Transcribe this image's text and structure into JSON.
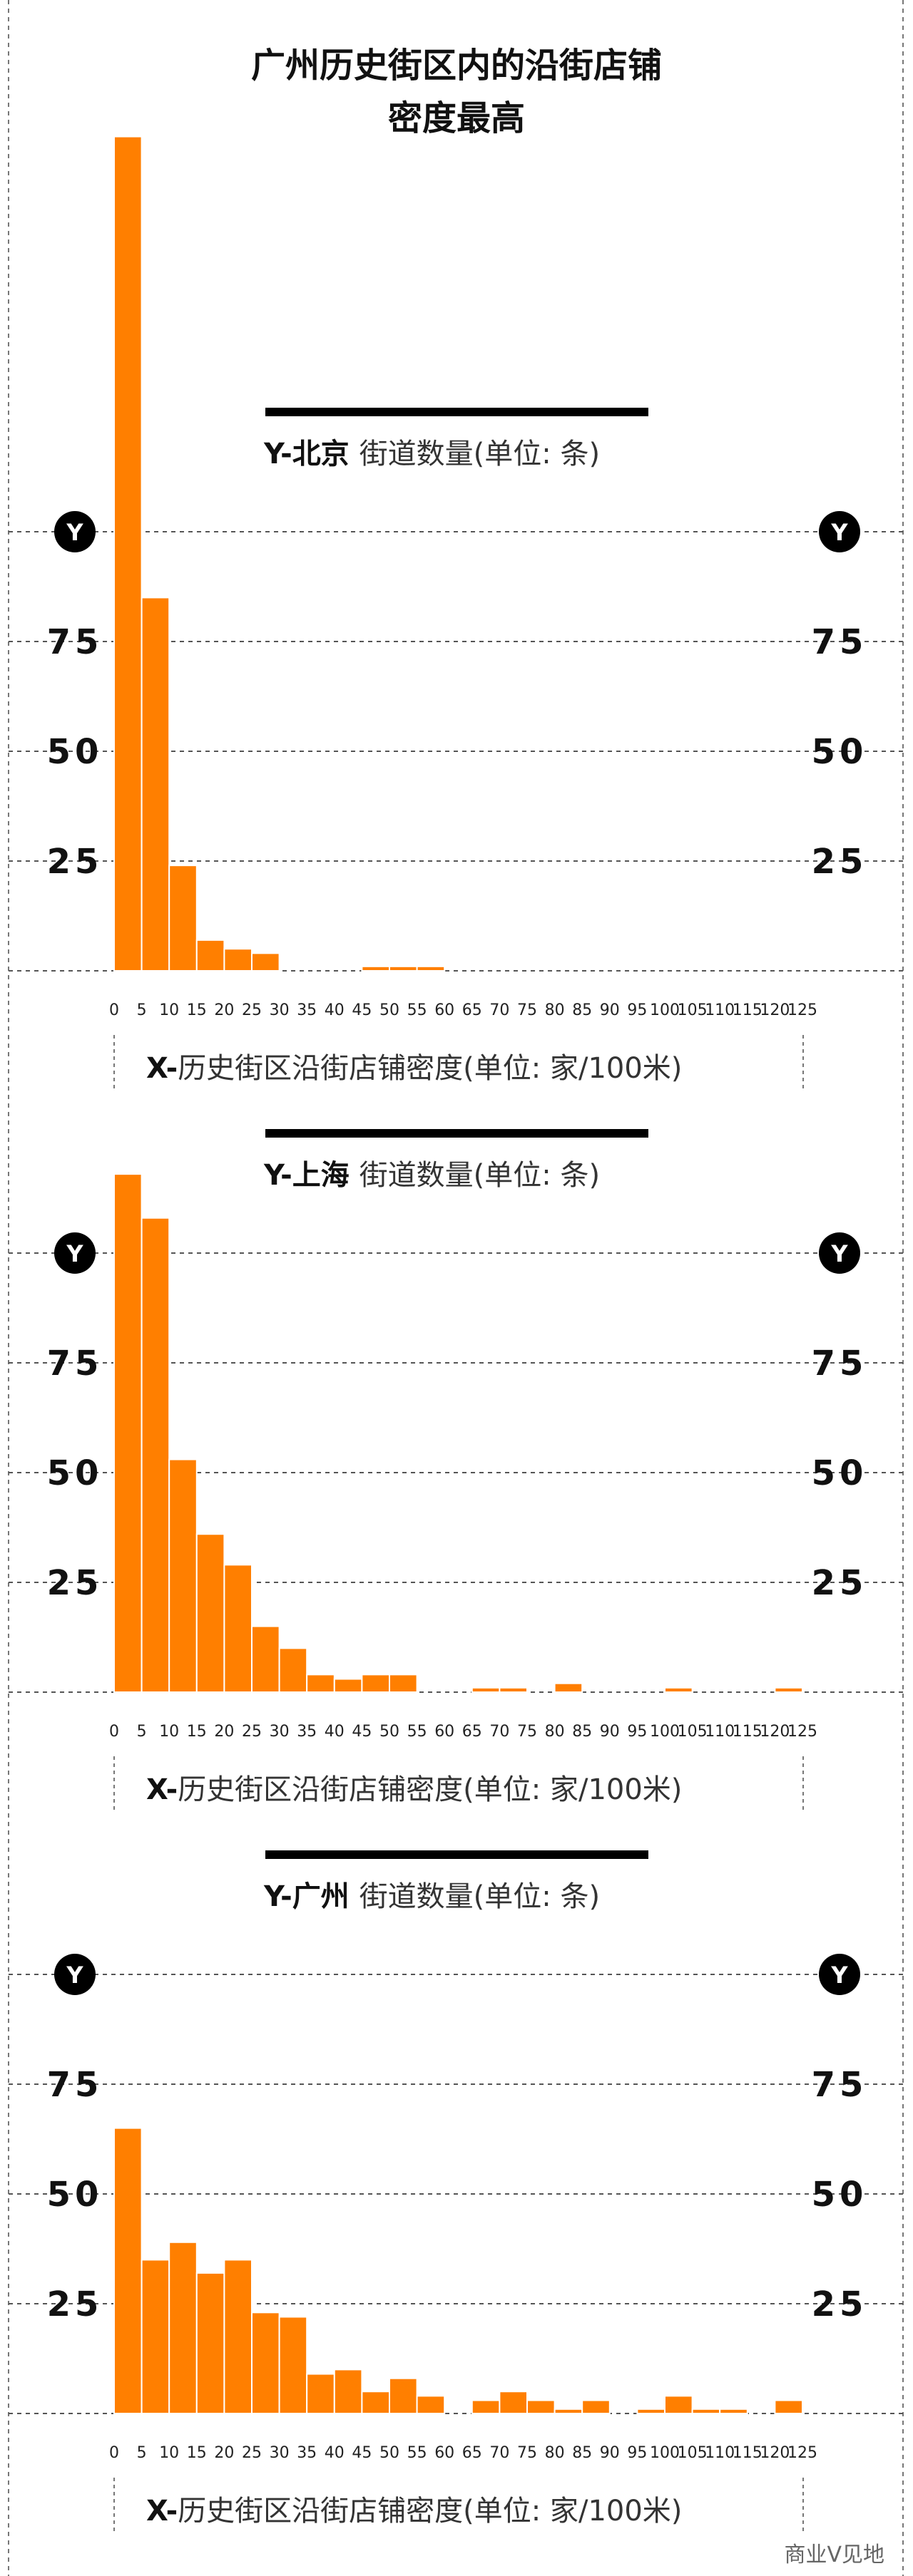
{
  "title_lines": [
    "广州历史街区内的沿街店铺",
    "密度最高"
  ],
  "watermark": "商业V见地",
  "colors": {
    "bar": "#ff7f00",
    "bar_edge": "#ffffff",
    "grid": "#555555",
    "text": "#111111"
  },
  "chart_data": [
    {
      "type": "bar",
      "city": "北京",
      "ylabel_prefix": "Y-",
      "ylabel_rest": "街道数量(单位: 条)",
      "xlabel_prefix": "X-",
      "xlabel_rest": "历史街区沿街店铺密度(单位: 家/100米)",
      "y_marker": "Y",
      "y_ticks": [
        "25",
        "50",
        "75"
      ],
      "x_ticks": [
        "0",
        "5",
        "10",
        "15",
        "20",
        "25",
        "30",
        "35",
        "40",
        "45",
        "50",
        "55",
        "60",
        "65",
        "70",
        "75",
        "80",
        "85",
        "90",
        "95",
        "100",
        "105",
        "110",
        "115",
        "120",
        "125"
      ],
      "bin_width": 5,
      "ylim": [
        0,
        100
      ],
      "values": [
        190,
        85,
        24,
        7,
        5,
        4,
        0,
        0,
        0,
        1,
        1,
        1,
        0,
        0,
        0,
        0,
        0,
        0,
        0,
        0,
        0,
        0,
        0,
        0,
        0
      ]
    },
    {
      "type": "bar",
      "city": "上海",
      "ylabel_prefix": "Y-",
      "ylabel_rest": "街道数量(单位: 条)",
      "xlabel_prefix": "X-",
      "xlabel_rest": "历史街区沿街店铺密度(单位: 家/100米)",
      "y_marker": "Y",
      "y_ticks": [
        "25",
        "50",
        "75"
      ],
      "x_ticks": [
        "0",
        "5",
        "10",
        "15",
        "20",
        "25",
        "30",
        "35",
        "40",
        "45",
        "50",
        "55",
        "60",
        "65",
        "70",
        "75",
        "80",
        "85",
        "90",
        "95",
        "100",
        "105",
        "110",
        "115",
        "120",
        "125"
      ],
      "bin_width": 5,
      "ylim": [
        0,
        100
      ],
      "values": [
        118,
        108,
        53,
        36,
        29,
        15,
        10,
        4,
        3,
        4,
        4,
        0,
        0,
        1,
        1,
        0,
        2,
        0,
        0,
        0,
        1,
        0,
        0,
        0,
        1
      ]
    },
    {
      "type": "bar",
      "city": "广州",
      "ylabel_prefix": "Y-",
      "ylabel_rest": "街道数量(单位: 条)",
      "xlabel_prefix": "X-",
      "xlabel_rest": "历史街区沿街店铺密度(单位: 家/100米)",
      "y_marker": "Y",
      "y_ticks": [
        "25",
        "50",
        "75"
      ],
      "x_ticks": [
        "0",
        "5",
        "10",
        "15",
        "20",
        "25",
        "30",
        "35",
        "40",
        "45",
        "50",
        "55",
        "60",
        "65",
        "70",
        "75",
        "80",
        "85",
        "90",
        "95",
        "100",
        "105",
        "110",
        "115",
        "120",
        "125"
      ],
      "bin_width": 5,
      "ylim": [
        0,
        100
      ],
      "values": [
        65,
        35,
        39,
        32,
        35,
        23,
        22,
        9,
        10,
        5,
        8,
        4,
        0,
        3,
        5,
        3,
        1,
        3,
        0,
        1,
        4,
        1,
        1,
        0,
        3
      ]
    }
  ]
}
